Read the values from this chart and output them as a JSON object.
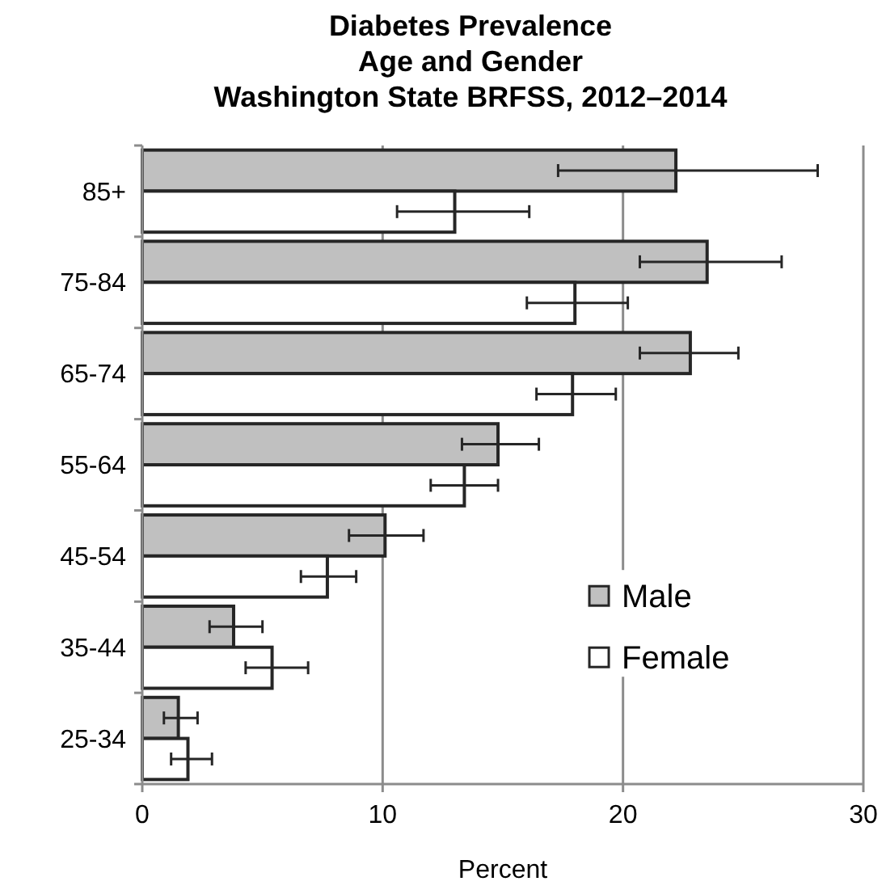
{
  "chart_data": {
    "type": "bar",
    "orientation": "horizontal",
    "title": "Diabetes Prevalence\nAge and Gender\nWashington State BRFSS, 2012–2014",
    "xlabel": "Percent",
    "categories": [
      "85+",
      "75-84",
      "65-74",
      "55-64",
      "45-54",
      "35-44",
      "25-34"
    ],
    "series": [
      {
        "name": "Male",
        "color": "#c0c0c0",
        "values": [
          22.2,
          23.5,
          22.8,
          14.8,
          10.1,
          3.8,
          1.5
        ],
        "errors": [
          [
            17.3,
            28.1
          ],
          [
            20.7,
            26.6
          ],
          [
            20.7,
            24.8
          ],
          [
            13.3,
            16.5
          ],
          [
            8.6,
            11.7
          ],
          [
            2.8,
            5.0
          ],
          [
            0.9,
            2.3
          ]
        ]
      },
      {
        "name": "Female",
        "color": "#ffffff",
        "values": [
          13.0,
          18.0,
          17.9,
          13.4,
          7.7,
          5.4,
          1.9
        ],
        "errors": [
          [
            10.6,
            16.1
          ],
          [
            16.0,
            20.2
          ],
          [
            16.4,
            19.7
          ],
          [
            12.0,
            14.8
          ],
          [
            6.6,
            8.9
          ],
          [
            4.3,
            6.9
          ],
          [
            1.2,
            2.9
          ]
        ]
      }
    ],
    "xlim": [
      0,
      30
    ],
    "xticks": [
      0,
      10,
      20,
      30
    ],
    "grid": "x",
    "legend": "bottom right"
  }
}
